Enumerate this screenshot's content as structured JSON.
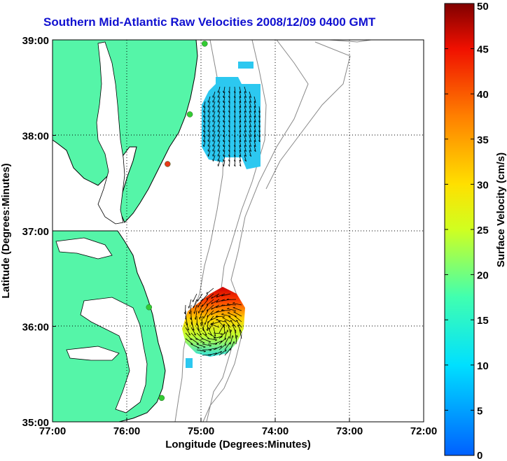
{
  "title": "Southern Mid-Atlantic Raw Velocities 2008/12/09 0400 GMT",
  "axes": {
    "xlabel": "Longitude (Degrees:Minutes)",
    "ylabel": "Latitude (Degrees:Minutes)",
    "xticks": [
      "77:00",
      "76:00",
      "75:00",
      "74:00",
      "73:00",
      "72:00"
    ],
    "yticks": [
      "39:00",
      "38:00",
      "37:00",
      "36:00",
      "35:00"
    ],
    "xlim": [
      -77,
      -72
    ],
    "ylim": [
      35,
      39
    ]
  },
  "colorbar": {
    "label": "Surface Velocity (cm/s)",
    "ticks": [
      "0",
      "5",
      "10",
      "15",
      "20",
      "25",
      "30",
      "35",
      "40",
      "45",
      "50"
    ],
    "range": [
      0,
      50
    ]
  },
  "colors": {
    "land": "#55f5a8",
    "coast": "#000000",
    "bathymetry": "#888888",
    "title": "#1010d0",
    "station_green": "#33cc33",
    "station_red": "#e83a1a"
  },
  "chart_data": {
    "type": "heatmap",
    "title": "Southern Mid-Atlantic Raw Velocities 2008/12/09 0400 GMT",
    "xlabel": "Longitude (Degrees:Minutes)",
    "ylabel": "Latitude (Degrees:Minutes)",
    "xlim": [
      -77,
      -72
    ],
    "ylim": [
      35,
      39
    ],
    "grid": true,
    "colorbar_label": "Surface Velocity (cm/s)",
    "colorbar_range": [
      0,
      50
    ],
    "stations": [
      {
        "lon": -74.95,
        "lat": 38.96,
        "color": "green"
      },
      {
        "lon": -75.15,
        "lat": 38.22,
        "color": "green"
      },
      {
        "lon": -75.45,
        "lat": 37.7,
        "color": "red"
      },
      {
        "lon": -75.7,
        "lat": 36.2,
        "color": "green"
      },
      {
        "lon": -75.53,
        "lat": 35.25,
        "color": "green"
      }
    ],
    "regions": [
      {
        "name": "",
        "lon_range": [
          -75.0,
          -74.2
        ],
        "lat_range": [
          37.75,
          38.55
        ],
        "speed_cm_s": 8
      },
      {
        "name": "",
        "lon_range": [
          -75.3,
          -74.4
        ],
        "lat_range": [
          35.6,
          36.45
        ],
        "speed_cm_s": 40
      }
    ]
  }
}
